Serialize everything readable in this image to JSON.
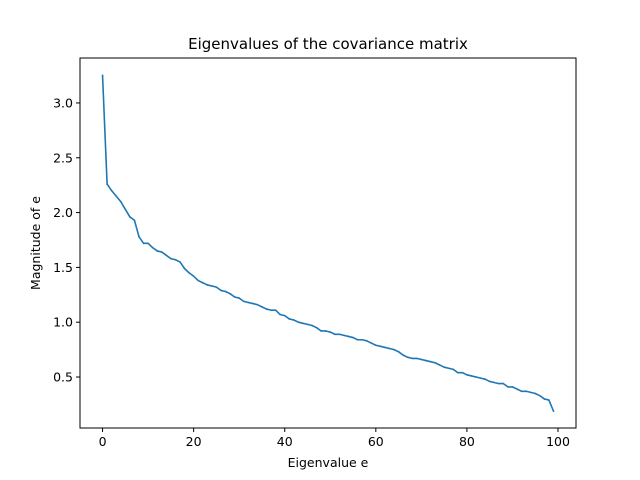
{
  "chart_data": {
    "type": "line",
    "title": "Eigenvalues of the covariance matrix",
    "xlabel": "Eigenvalue e",
    "ylabel": "Magnitude of e",
    "xlim": [
      -4.95,
      103.95
    ],
    "ylim": [
      0.035,
      3.41
    ],
    "xticks": [
      0,
      20,
      40,
      60,
      80,
      100
    ],
    "xtick_labels": [
      "0",
      "20",
      "40",
      "60",
      "80",
      "100"
    ],
    "yticks": [
      0.5,
      1.0,
      1.5,
      2.0,
      2.5,
      3.0
    ],
    "ytick_labels": [
      "0.5",
      "1.0",
      "1.5",
      "2.0",
      "2.5",
      "3.0"
    ],
    "grid": false,
    "series": [
      {
        "color": "#1f77b4",
        "x": [
          0,
          1,
          2,
          3,
          4,
          5,
          6,
          7,
          8,
          9,
          10,
          11,
          12,
          13,
          14,
          15,
          16,
          17,
          18,
          19,
          20,
          21,
          22,
          23,
          24,
          25,
          26,
          27,
          28,
          29,
          30,
          31,
          32,
          33,
          34,
          35,
          36,
          37,
          38,
          39,
          40,
          41,
          42,
          43,
          44,
          45,
          46,
          47,
          48,
          49,
          50,
          51,
          52,
          53,
          54,
          55,
          56,
          57,
          58,
          59,
          60,
          61,
          62,
          63,
          64,
          65,
          66,
          67,
          68,
          69,
          70,
          71,
          72,
          73,
          74,
          75,
          76,
          77,
          78,
          79,
          80,
          81,
          82,
          83,
          84,
          85,
          86,
          87,
          88,
          89,
          90,
          91,
          92,
          93,
          94,
          95,
          96,
          97,
          98,
          99
        ],
        "y": [
          3.25,
          2.26,
          2.2,
          2.15,
          2.1,
          2.03,
          1.96,
          1.93,
          1.78,
          1.72,
          1.72,
          1.68,
          1.65,
          1.64,
          1.61,
          1.58,
          1.57,
          1.55,
          1.49,
          1.45,
          1.42,
          1.38,
          1.36,
          1.34,
          1.33,
          1.32,
          1.29,
          1.28,
          1.26,
          1.23,
          1.22,
          1.19,
          1.18,
          1.17,
          1.16,
          1.14,
          1.12,
          1.11,
          1.11,
          1.07,
          1.06,
          1.03,
          1.02,
          1.0,
          0.99,
          0.98,
          0.97,
          0.95,
          0.92,
          0.92,
          0.91,
          0.89,
          0.89,
          0.88,
          0.87,
          0.86,
          0.84,
          0.84,
          0.83,
          0.81,
          0.79,
          0.78,
          0.77,
          0.76,
          0.75,
          0.73,
          0.7,
          0.68,
          0.67,
          0.67,
          0.66,
          0.65,
          0.64,
          0.63,
          0.61,
          0.59,
          0.58,
          0.57,
          0.54,
          0.54,
          0.52,
          0.51,
          0.5,
          0.49,
          0.48,
          0.46,
          0.45,
          0.44,
          0.44,
          0.41,
          0.41,
          0.39,
          0.37,
          0.37,
          0.36,
          0.35,
          0.33,
          0.3,
          0.29,
          0.19
        ]
      }
    ]
  }
}
